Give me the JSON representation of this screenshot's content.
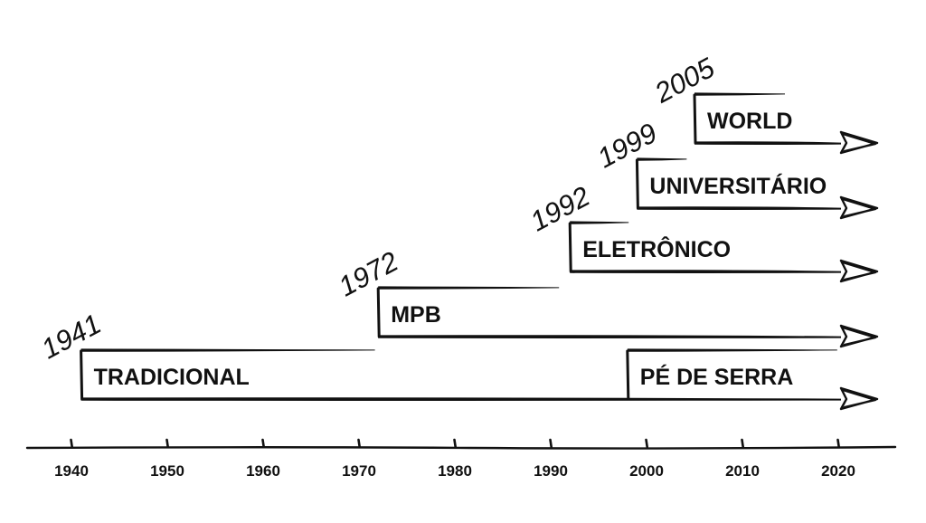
{
  "timeline": {
    "ticks": [
      "1940",
      "1950",
      "1960",
      "1970",
      "1980",
      "1990",
      "2000",
      "2010",
      "2020"
    ],
    "tick_years": [
      1940,
      1950,
      1960,
      1970,
      1980,
      1990,
      2000,
      2010,
      2020
    ],
    "axis_range": [
      1934,
      2025
    ],
    "end_year": 2024
  },
  "genres": [
    {
      "label": "TRADICIONAL",
      "start_year": 1941,
      "year_label": "1941",
      "lane": 0
    },
    {
      "label": "PÉ DE SERRA",
      "start_year": 1998,
      "year_label": "",
      "lane": 0
    },
    {
      "label": "MPB",
      "start_year": 1972,
      "year_label": "1972",
      "lane": 1
    },
    {
      "label": "ELETRÔNICO",
      "start_year": 1992,
      "year_label": "1992",
      "lane": 2
    },
    {
      "label": "UNIVERSITÁRIO",
      "start_year": 1999,
      "year_label": "1999",
      "lane": 3
    },
    {
      "label": "WORLD",
      "start_year": 2005,
      "year_label": "2005",
      "lane": 4
    }
  ],
  "colors": {
    "ink": "#111111",
    "background": "#ffffff"
  }
}
